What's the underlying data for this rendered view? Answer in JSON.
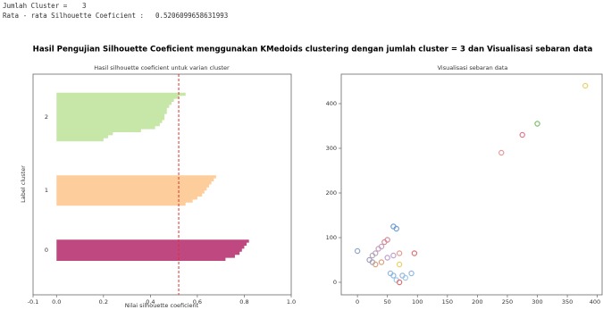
{
  "output": {
    "cluster_label": "Jumlah Cluster =",
    "cluster_count": 3,
    "avg_label": "Rata - rata Silhouette Coeficient :",
    "avg_value": 0.5206099658631993
  },
  "suptitle": "Hasil Pengujian Silhouette Coeficient menggunakan KMedoids clustering dengan jumlah cluster = 3 dan Visualisasi sebaran data",
  "chart_data": [
    {
      "type": "silhouette",
      "title": "Hasil silhouette coeficient untuk varian cluster",
      "xlabel": "Nilai silhouette coeficient",
      "ylabel": "Label cluster",
      "xlim": [
        -0.1,
        1.0
      ],
      "xticks": [
        -0.1,
        {
          "value": 0,
          "label": "0.0"
        },
        0.2,
        0.4,
        0.6,
        0.8,
        {
          "value": 1,
          "label": "1.0"
        }
      ],
      "avg_line_color": "#e0312f",
      "clusters": [
        {
          "label": "0",
          "color": "#b5286a",
          "values": [
            0.72,
            0.76,
            0.78,
            0.79,
            0.8,
            0.81,
            0.82
          ]
        },
        {
          "label": "1",
          "color": "#fdc58a",
          "values": [
            0.55,
            0.58,
            0.6,
            0.62,
            0.63,
            0.64,
            0.65,
            0.66,
            0.67,
            0.68
          ]
        },
        {
          "label": "2",
          "color": "#bde39a",
          "values": [
            0.2,
            0.22,
            0.24,
            0.36,
            0.42,
            0.44,
            0.45,
            0.46,
            0.46,
            0.47,
            0.47,
            0.48,
            0.49,
            0.5,
            0.52,
            0.55
          ]
        }
      ]
    },
    {
      "type": "scatter",
      "title": "Visualisasi sebaran data",
      "xlim": [
        -27,
        408
      ],
      "ylim": [
        -28,
        466
      ],
      "xticks": [
        0,
        50,
        100,
        150,
        200,
        250,
        300,
        350,
        400
      ],
      "yticks": [
        0,
        100,
        200,
        300,
        400
      ],
      "x": [
        380,
        300,
        275,
        240,
        0,
        60,
        65,
        45,
        50,
        40,
        35,
        30,
        25,
        20,
        25,
        30,
        40,
        50,
        60,
        70,
        95,
        70,
        55,
        60,
        75,
        90,
        80,
        65,
        70
      ],
      "y": [
        440,
        355,
        330,
        290,
        70,
        125,
        120,
        90,
        95,
        80,
        75,
        65,
        60,
        50,
        45,
        40,
        45,
        55,
        60,
        65,
        65,
        40,
        20,
        15,
        15,
        20,
        10,
        5,
        0
      ],
      "colors": [
        "#e8d36a",
        "#7fbf6a",
        "#e07a8a",
        "#e59a9a",
        "#8fa8c8",
        "#6f9fd6",
        "#6f9fd6",
        "#d88a9a",
        "#d88a9a",
        "#c9a0c0",
        "#c9a0c0",
        "#b8a8b8",
        "#b8a8b8",
        "#a0a0b8",
        "#a0a0b8",
        "#d8a080",
        "#d8a080",
        "#c0a0d0",
        "#c0a0d0",
        "#e0a090",
        "#e07070",
        "#e8d36a",
        "#90b8e0",
        "#90b8e0",
        "#90b8e0",
        "#90b8e0",
        "#a0c8e8",
        "#a0c8e8",
        "#e07070"
      ]
    }
  ]
}
